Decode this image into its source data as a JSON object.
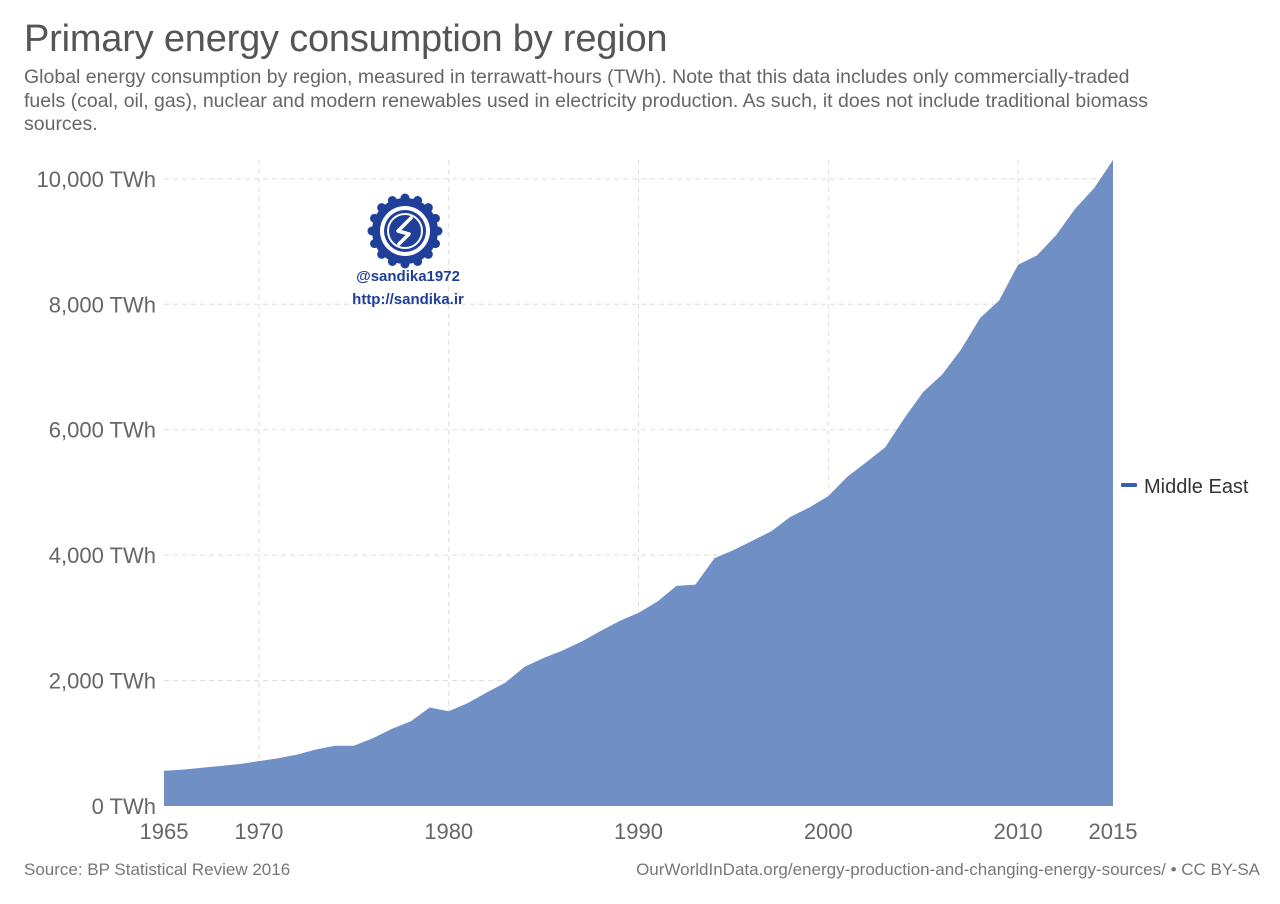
{
  "title": "Primary energy consumption by region",
  "subtitle": "Global energy consumption by region, measured in terrawatt-hours (TWh). Note that this data includes only commercially-traded fuels (coal, oil, gas), nuclear and modern renewables used in electricity production. As such, it does not include traditional biomass sources.",
  "footer": {
    "source": "Source: BP Statistical Review 2016",
    "url": "OurWorldInData.org/energy-production-and-changing-energy-sources/ • CC BY-SA"
  },
  "watermark": {
    "handle": "@sandika1972",
    "site": "http://sandika.ir",
    "logo_icon": "sandika-seal-logo"
  },
  "colors": {
    "area": "#6f8fc5",
    "legend_mark": "#3a5fb0",
    "grid": "#dddddd",
    "watermark": "#1f3f99"
  },
  "chart_data": {
    "type": "area",
    "title": "Primary energy consumption by region",
    "xlabel": "",
    "ylabel": "",
    "xlim": [
      1965,
      2015
    ],
    "ylim": [
      0,
      10300
    ],
    "grid": true,
    "legend_position": "right",
    "x_ticks": [
      1965,
      1970,
      1980,
      1990,
      2000,
      2010,
      2015
    ],
    "y_ticks": [
      0,
      2000,
      4000,
      6000,
      8000,
      10000
    ],
    "y_tick_labels": [
      "0 TWh",
      "2,000 TWh",
      "4,000 TWh",
      "6,000 TWh",
      "8,000 TWh",
      "10,000 TWh"
    ],
    "x": [
      1965,
      1966,
      1967,
      1968,
      1969,
      1970,
      1971,
      1972,
      1973,
      1974,
      1975,
      1976,
      1977,
      1978,
      1979,
      1980,
      1981,
      1982,
      1983,
      1984,
      1985,
      1986,
      1987,
      1988,
      1989,
      1990,
      1991,
      1992,
      1993,
      1994,
      1995,
      1996,
      1997,
      1998,
      1999,
      2000,
      2001,
      2002,
      2003,
      2004,
      2005,
      2006,
      2007,
      2008,
      2009,
      2010,
      2011,
      2012,
      2013,
      2014,
      2015
    ],
    "series": [
      {
        "name": "Middle East",
        "values": [
          560,
          580,
          610,
          640,
          670,
          715,
          760,
          820,
          900,
          960,
          960,
          1080,
          1230,
          1350,
          1570,
          1510,
          1640,
          1810,
          1970,
          2220,
          2360,
          2480,
          2620,
          2790,
          2950,
          3080,
          3260,
          3510,
          3530,
          3950,
          4080,
          4230,
          4380,
          4610,
          4760,
          4940,
          5250,
          5480,
          5720,
          6180,
          6600,
          6880,
          7280,
          7780,
          8060,
          8630,
          8780,
          9100,
          9520,
          9850,
          10300
        ]
      }
    ]
  }
}
